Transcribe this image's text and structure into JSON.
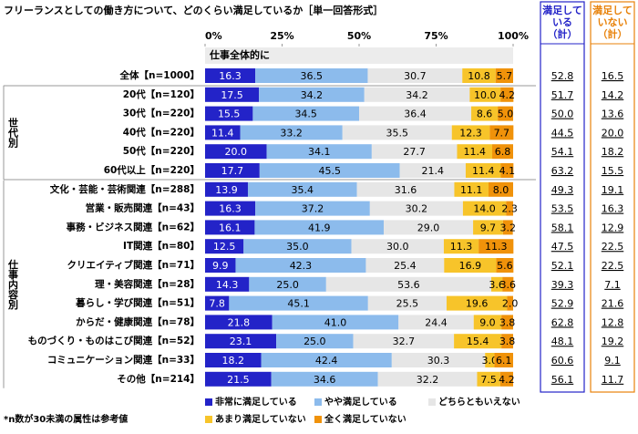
{
  "chart_data": {
    "type": "bar",
    "orientation": "horizontal",
    "stacked": true,
    "title": "フリーランスとしての働き方について、どのくらい満足しているか［単一回答形式］",
    "section_label": "仕事全体的に",
    "groups": [
      {
        "label": "世代別",
        "first": 1,
        "last": 5
      },
      {
        "label": "仕事内容別",
        "first": 6,
        "last": 16
      }
    ],
    "categories": [
      "全体【n=1000】",
      "20代【n=120】",
      "30代【n=220】",
      "40代【n=220】",
      "50代【n=220】",
      "60代以上【n=220】",
      "文化・芸能・芸術関連【n=288】",
      "営業・販売関連【n=43】",
      "事務・ビジネス関連【n=62】",
      "IT関連【n=80】",
      "クリエイティブ関連【n=71】",
      "理・美容関連【n=28】",
      "暮らし・学び関連【n=51】",
      "からだ・健康関連【n=78】",
      "ものづくり・ものはこび関連【n=52】",
      "コミュニケーション関連【n=33】",
      "その他【n=214】"
    ],
    "xlim": [
      0,
      100
    ],
    "xticks": [
      {
        "value": 0,
        "label": "0%"
      },
      {
        "value": 25,
        "label": "25%"
      },
      {
        "value": 50,
        "label": "50%"
      },
      {
        "value": 75,
        "label": "75%"
      },
      {
        "value": 100,
        "label": "100%"
      }
    ],
    "series": [
      {
        "name": "非常に満足している",
        "color": "#2323c8",
        "text_color": "#ffffff",
        "values": [
          16.3,
          17.5,
          15.5,
          11.4,
          20.0,
          17.7,
          13.9,
          16.3,
          16.1,
          12.5,
          9.9,
          14.3,
          7.8,
          21.8,
          23.1,
          18.2,
          21.5
        ],
        "value_labels": [
          "16.3",
          "17.5",
          "15.5",
          "11.4",
          "20.0",
          "17.7",
          "13.9",
          "16.3",
          "16.1",
          "12.5",
          "9.9",
          "14.3",
          "7.8",
          "21.8",
          "23.1",
          "18.2",
          "21.5"
        ]
      },
      {
        "name": "やや満足している",
        "color": "#8cbbec",
        "text_color": "#000000",
        "values": [
          36.5,
          34.2,
          34.5,
          33.2,
          34.1,
          45.5,
          35.4,
          37.2,
          41.9,
          35.0,
          42.3,
          25.0,
          45.1,
          41.0,
          25.0,
          42.4,
          34.6
        ],
        "value_labels": [
          "36.5",
          "34.2",
          "34.5",
          "33.2",
          "34.1",
          "45.5",
          "35.4",
          "37.2",
          "41.9",
          "35.0",
          "42.3",
          "25.0",
          "45.1",
          "41.0",
          "25.0",
          "42.4",
          "34.6"
        ]
      },
      {
        "name": "どちらともいえない",
        "color": "#e6e6e6",
        "text_color": "#000000",
        "values": [
          30.7,
          34.2,
          36.4,
          35.5,
          27.7,
          21.4,
          31.6,
          30.2,
          29.0,
          30.0,
          25.4,
          53.6,
          25.5,
          24.4,
          32.7,
          30.3,
          32.2
        ],
        "value_labels": [
          "30.7",
          "34.2",
          "36.4",
          "35.5",
          "27.7",
          "21.4",
          "31.6",
          "30.2",
          "29.0",
          "30.0",
          "25.4",
          "53.6",
          "25.5",
          "24.4",
          "32.7",
          "30.3",
          "32.2"
        ]
      },
      {
        "name": "あまり満足していない",
        "color": "#f7c42a",
        "text_color": "#000000",
        "values": [
          10.8,
          10.0,
          8.6,
          12.3,
          11.4,
          11.4,
          11.1,
          14.0,
          9.7,
          11.3,
          16.9,
          3.6,
          19.6,
          9.0,
          15.4,
          3.0,
          7.5
        ],
        "value_labels": [
          "10.8",
          "10.0",
          "8.6",
          "12.3",
          "11.4",
          "11.4",
          "11.1",
          "14.0",
          "9.7",
          "11.3",
          "16.9",
          "3.6",
          "19.6",
          "9.0",
          "15.4",
          "3.0",
          "7.5"
        ]
      },
      {
        "name": "全く満足していない",
        "color": "#f0920a",
        "text_color": "#000000",
        "values": [
          5.7,
          4.2,
          5.0,
          7.7,
          6.8,
          4.1,
          8.0,
          2.3,
          3.2,
          11.3,
          5.6,
          3.6,
          2.0,
          3.8,
          3.8,
          6.1,
          4.2
        ],
        "value_labels": [
          "5.7",
          "4.2",
          "5.0",
          "7.7",
          "6.8",
          "4.1",
          "8.0",
          "2.3",
          "3.2",
          "11.3",
          "5.6",
          "3.6",
          "2.0",
          "3.8",
          "3.8",
          "6.1",
          "4.2"
        ]
      }
    ],
    "satisfied_total": {
      "header": [
        "満足して",
        "いる",
        "（計）"
      ],
      "color": "#2323c8",
      "values": [
        "52.8",
        "51.7",
        "50.0",
        "44.5",
        "54.1",
        "63.2",
        "49.3",
        "53.5",
        "58.1",
        "47.5",
        "52.1",
        "39.3",
        "52.9",
        "62.8",
        "48.1",
        "60.6",
        "56.1"
      ]
    },
    "dissatisfied_total": {
      "header": [
        "満足して",
        "いない",
        "（計）"
      ],
      "color": "#e8820a",
      "values": [
        "16.5",
        "14.2",
        "13.6",
        "20.0",
        "18.2",
        "15.5",
        "19.1",
        "16.3",
        "12.9",
        "22.5",
        "22.5",
        "7.1",
        "21.6",
        "12.8",
        "19.2",
        "9.1",
        "11.7"
      ]
    },
    "footnote": "*n数が30未満の属性は参考値"
  }
}
